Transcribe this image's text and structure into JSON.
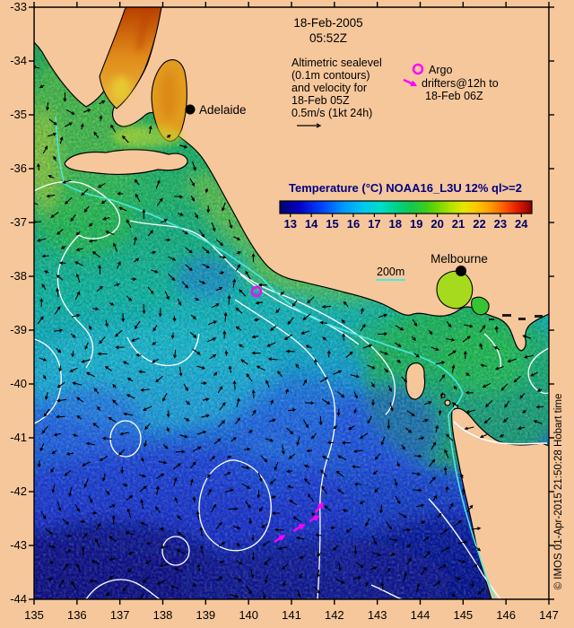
{
  "header": {
    "date": "18-Feb-2005",
    "time": "05:52Z"
  },
  "annotation": {
    "lines": [
      "Altimetric sealevel",
      "(0.1m contours)",
      "and velocity for",
      "18-Feb 05Z",
      "0.5m/s (1kt 24h)"
    ]
  },
  "argo_legend": {
    "argo": "Argo",
    "drifters_line1": "drifters@12h to",
    "drifters_line2": "18-Feb 06Z"
  },
  "colorbar": {
    "title": "Temperature (°C) NOAA16_L3U 12% ql>=2",
    "tick_labels": [
      "13",
      "14",
      "15",
      "16",
      "17",
      "18",
      "19",
      "20",
      "21",
      "22",
      "23",
      "24"
    ],
    "gradient": [
      "#020268",
      "#0202C8",
      "#0046FF",
      "#0096FF",
      "#00C8F0",
      "#00DCC8",
      "#00D28C",
      "#14C850",
      "#3CCC1E",
      "#78D800",
      "#B4E400",
      "#E6E600",
      "#FFC800",
      "#FF9600",
      "#FF5A00",
      "#E61E00",
      "#8C0000"
    ]
  },
  "map_labels": {
    "adelaide": "Adelaide",
    "melbourne": "Melbourne",
    "isobath": "200m"
  },
  "axes": {
    "x_tick_labels": [
      "135",
      "136",
      "137",
      "138",
      "139",
      "140",
      "141",
      "142",
      "143",
      "144",
      "145",
      "146",
      "147"
    ],
    "y_tick_labels": [
      "-33",
      "-34",
      "-35",
      "-36",
      "-37",
      "-38",
      "-39",
      "-40",
      "-41",
      "-42",
      "-43",
      "-44"
    ]
  },
  "watermark": "© IMOS 01-Apr-2015 21:50:28 Hobart time",
  "colors": {
    "land": "#F6C79B",
    "magenta": "#FF00FF",
    "isobath_cyan": "#4CE8DC",
    "contour_white": "#FFFFFF",
    "colorbar_title": "#000080"
  },
  "chart_data": {
    "type": "heatmap",
    "title": "Temperature (°C) NOAA16_L3U 12% ql>=2",
    "x_axis_longitude_ticks": [
      135,
      136,
      137,
      138,
      139,
      140,
      141,
      142,
      143,
      144,
      145,
      146,
      147
    ],
    "y_axis_latitude_ticks": [
      -33,
      -34,
      -35,
      -36,
      -37,
      -38,
      -39,
      -40,
      -41,
      -42,
      -43,
      -44
    ],
    "temperature_scale_c": {
      "min": 13,
      "max": 24
    },
    "valid_date": "18-Feb-2005",
    "valid_time": "05:52Z",
    "overlays": [
      "Altimetric sealevel (0.1m contours)",
      "velocity for 18-Feb 05Z, 0.5m/s (1kt 24h)",
      "Argo floats",
      "drifters@12h to 18-Feb 06Z",
      "200m isobath"
    ],
    "cities": [
      {
        "name": "Adelaide",
        "approx_lon": 138.6,
        "approx_lat": -34.9
      },
      {
        "name": "Melbourne",
        "approx_lon": 145.0,
        "approx_lat": -37.9
      }
    ]
  }
}
